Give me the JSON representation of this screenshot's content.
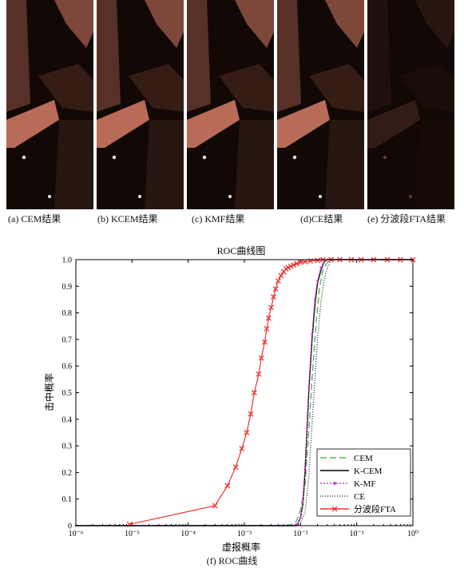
{
  "panels": [
    {
      "caption": "(a) CEM结果",
      "brightness": 0.95
    },
    {
      "caption": "(b) KCEM结果",
      "brightness": 0.95
    },
    {
      "caption": "(c) KMF结果",
      "brightness": 0.95
    },
    {
      "caption": "(d)CE结果",
      "brightness": 0.95
    },
    {
      "caption": "(e) 分波段FTA结果",
      "brightness": 0.2
    }
  ],
  "figure_caption": "(f) ROC曲线",
  "colors": {
    "thumb_bright": "#e0856a",
    "thumb_dark": "#140a07"
  },
  "chart_data": {
    "type": "line",
    "title": "ROC曲线图",
    "xlabel": "虚报概率",
    "ylabel": "击中概率",
    "xscale": "log",
    "xlim": [
      1e-06,
      1
    ],
    "ylim": [
      0,
      1
    ],
    "x_tick_labels": [
      "10⁻⁶",
      "10⁻⁵",
      "10⁻⁴",
      "10⁻³",
      "10⁻²",
      "10⁻¹",
      "10⁰"
    ],
    "y_tick_labels": [
      "0",
      "0.1",
      "0.2",
      "0.3",
      "0.4",
      "0.5",
      "0.6",
      "0.7",
      "0.8",
      "0.9",
      "1.0"
    ],
    "legend_position": "bottom-right",
    "series": [
      {
        "name": "CEM",
        "color": "#55bb55",
        "dash": "8,4",
        "marker": "none",
        "points": [
          [
            1e-06,
            0
          ],
          [
            0.006,
            0
          ],
          [
            0.008,
            0.01
          ],
          [
            0.009,
            0.03
          ],
          [
            0.01,
            0.06
          ],
          [
            0.012,
            0.15
          ],
          [
            0.014,
            0.35
          ],
          [
            0.016,
            0.55
          ],
          [
            0.018,
            0.7
          ],
          [
            0.02,
            0.82
          ],
          [
            0.022,
            0.9
          ],
          [
            0.025,
            0.96
          ],
          [
            0.03,
            0.99
          ],
          [
            0.035,
            1.0
          ],
          [
            1,
            1.0
          ]
        ]
      },
      {
        "name": "K-CEM",
        "color": "#000000",
        "dash": "",
        "marker": "none",
        "points": [
          [
            1e-06,
            0
          ],
          [
            0.008,
            0
          ],
          [
            0.009,
            0.01
          ],
          [
            0.01,
            0.03
          ],
          [
            0.011,
            0.08
          ],
          [
            0.012,
            0.2
          ],
          [
            0.013,
            0.35
          ],
          [
            0.014,
            0.5
          ],
          [
            0.016,
            0.7
          ],
          [
            0.018,
            0.83
          ],
          [
            0.02,
            0.91
          ],
          [
            0.023,
            0.96
          ],
          [
            0.026,
            0.99
          ],
          [
            0.03,
            1.0
          ],
          [
            1,
            1.0
          ]
        ]
      },
      {
        "name": "K-MF",
        "color": "#cc44cc",
        "dash": "2,2",
        "marker": "dot",
        "points": [
          [
            1e-06,
            0
          ],
          [
            0.008,
            0
          ],
          [
            0.009,
            0.01
          ],
          [
            0.01,
            0.03
          ],
          [
            0.011,
            0.09
          ],
          [
            0.012,
            0.22
          ],
          [
            0.013,
            0.37
          ],
          [
            0.014,
            0.52
          ],
          [
            0.016,
            0.72
          ],
          [
            0.018,
            0.85
          ],
          [
            0.02,
            0.92
          ],
          [
            0.023,
            0.97
          ],
          [
            0.026,
            0.99
          ],
          [
            0.03,
            1.0
          ],
          [
            1,
            1.0
          ]
        ]
      },
      {
        "name": "CE",
        "color": "#333366",
        "dash": "1,2",
        "marker": "none",
        "points": [
          [
            1e-06,
            0
          ],
          [
            0.009,
            0
          ],
          [
            0.01,
            0.01
          ],
          [
            0.012,
            0.05
          ],
          [
            0.014,
            0.18
          ],
          [
            0.016,
            0.38
          ],
          [
            0.018,
            0.55
          ],
          [
            0.02,
            0.7
          ],
          [
            0.023,
            0.84
          ],
          [
            0.026,
            0.92
          ],
          [
            0.03,
            0.97
          ],
          [
            0.035,
            1.0
          ],
          [
            1,
            1.0
          ]
        ]
      },
      {
        "name": "分波段FTA",
        "color": "#ee3333",
        "dash": "",
        "marker": "x",
        "points": [
          [
            9e-06,
            0.005
          ],
          [
            0.0003,
            0.075
          ],
          [
            0.0005,
            0.15
          ],
          [
            0.0007,
            0.22
          ],
          [
            0.0009,
            0.29
          ],
          [
            0.0011,
            0.35
          ],
          [
            0.0013,
            0.42
          ],
          [
            0.0015,
            0.5
          ],
          [
            0.0018,
            0.57
          ],
          [
            0.002,
            0.63
          ],
          [
            0.0023,
            0.69
          ],
          [
            0.0025,
            0.74
          ],
          [
            0.0027,
            0.78
          ],
          [
            0.003,
            0.82
          ],
          [
            0.0033,
            0.86
          ],
          [
            0.0036,
            0.89
          ],
          [
            0.004,
            0.92
          ],
          [
            0.0045,
            0.94
          ],
          [
            0.005,
            0.955
          ],
          [
            0.0055,
            0.965
          ],
          [
            0.006,
            0.97
          ],
          [
            0.0067,
            0.975
          ],
          [
            0.0075,
            0.98
          ],
          [
            0.0085,
            0.985
          ],
          [
            0.01,
            0.99
          ],
          [
            0.012,
            0.992
          ],
          [
            0.015,
            0.995
          ],
          [
            0.02,
            0.997
          ],
          [
            0.025,
            1.0
          ],
          [
            0.035,
            1.0
          ],
          [
            0.05,
            1.0
          ],
          [
            0.08,
            1.0
          ],
          [
            0.12,
            1.0
          ],
          [
            0.2,
            1.0
          ],
          [
            0.35,
            1.0
          ],
          [
            0.6,
            1.0
          ],
          [
            1,
            1.0
          ]
        ]
      }
    ]
  }
}
